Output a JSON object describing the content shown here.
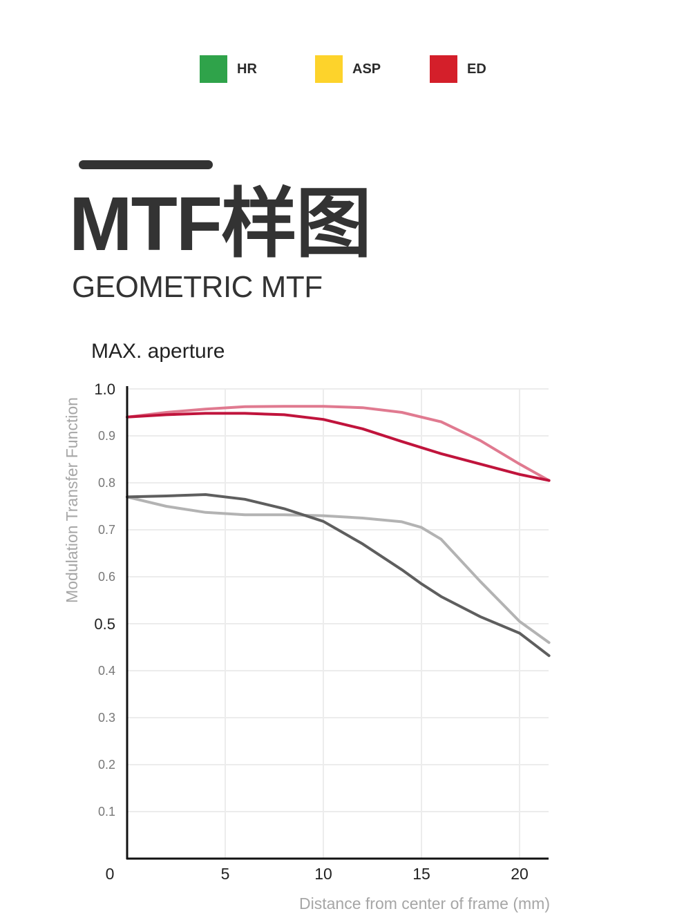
{
  "legend": [
    {
      "label": "HR",
      "color": "#2fa34a"
    },
    {
      "label": "ASP",
      "color": "#fdd32b"
    },
    {
      "label": "ED",
      "color": "#d41f2a"
    }
  ],
  "header": {
    "title": "MTF样图",
    "subtitle": "GEOMETRIC MTF"
  },
  "chart_data": {
    "type": "line",
    "title": "MAX. aperture",
    "xlabel": "Distance from center of frame (mm)",
    "ylabel": "Modulation Transfer Function",
    "xlim": [
      0,
      21.6
    ],
    "ylim": [
      0,
      1.0
    ],
    "x_ticks": [
      "0",
      "5",
      "10",
      "15",
      "20"
    ],
    "y_ticks": [
      "1.0",
      "0.9",
      "0.8",
      "0.7",
      "0.6",
      "0.5",
      "0.4",
      "0.3",
      "0.2",
      "0.1"
    ],
    "grid": true,
    "series": [
      {
        "color": "#e07a90",
        "x": [
          0,
          2,
          4,
          6,
          8,
          10,
          12,
          14,
          16,
          18,
          20,
          21.5
        ],
        "values": [
          0.94,
          0.95,
          0.957,
          0.962,
          0.963,
          0.963,
          0.96,
          0.95,
          0.93,
          0.89,
          0.84,
          0.805
        ]
      },
      {
        "color": "#c0143c",
        "x": [
          0,
          2,
          4,
          6,
          8,
          10,
          12,
          14,
          16,
          18,
          20,
          21.5
        ],
        "values": [
          0.94,
          0.945,
          0.948,
          0.948,
          0.945,
          0.935,
          0.915,
          0.888,
          0.862,
          0.84,
          0.818,
          0.805
        ]
      },
      {
        "color": "#b3b3b3",
        "x": [
          0,
          2,
          4,
          6,
          8,
          10,
          12,
          14,
          15,
          16,
          18,
          20,
          21.5
        ],
        "values": [
          0.77,
          0.75,
          0.737,
          0.732,
          0.732,
          0.73,
          0.725,
          0.717,
          0.705,
          0.68,
          0.59,
          0.505,
          0.46
        ]
      },
      {
        "color": "#5e5e5e",
        "x": [
          0,
          2,
          4,
          6,
          8,
          10,
          12,
          14,
          15,
          16,
          18,
          20,
          21.5
        ],
        "values": [
          0.77,
          0.772,
          0.775,
          0.765,
          0.745,
          0.718,
          0.67,
          0.615,
          0.585,
          0.558,
          0.515,
          0.48,
          0.432
        ]
      }
    ]
  }
}
